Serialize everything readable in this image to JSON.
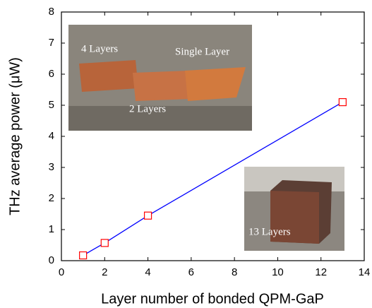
{
  "chart_data": {
    "type": "line",
    "xlabel": "Layer number of bonded QPM-GaP",
    "ylabel": "THz average power (μW)",
    "x": [
      1,
      2,
      4,
      13
    ],
    "values": [
      0.17,
      0.57,
      1.45,
      5.1
    ],
    "line_color": "#0000ff",
    "marker_color": "#ff0000",
    "xlim": [
      0,
      14
    ],
    "xticks": [
      0,
      2,
      4,
      6,
      8,
      10,
      12,
      14
    ],
    "ylim": [
      0,
      8
    ],
    "yticks": [
      0,
      1,
      2,
      3,
      4,
      5,
      6,
      7,
      8
    ],
    "annotations": [
      "4 Layers",
      "Single Layer",
      "2 Layers",
      "13 Layers"
    ]
  }
}
